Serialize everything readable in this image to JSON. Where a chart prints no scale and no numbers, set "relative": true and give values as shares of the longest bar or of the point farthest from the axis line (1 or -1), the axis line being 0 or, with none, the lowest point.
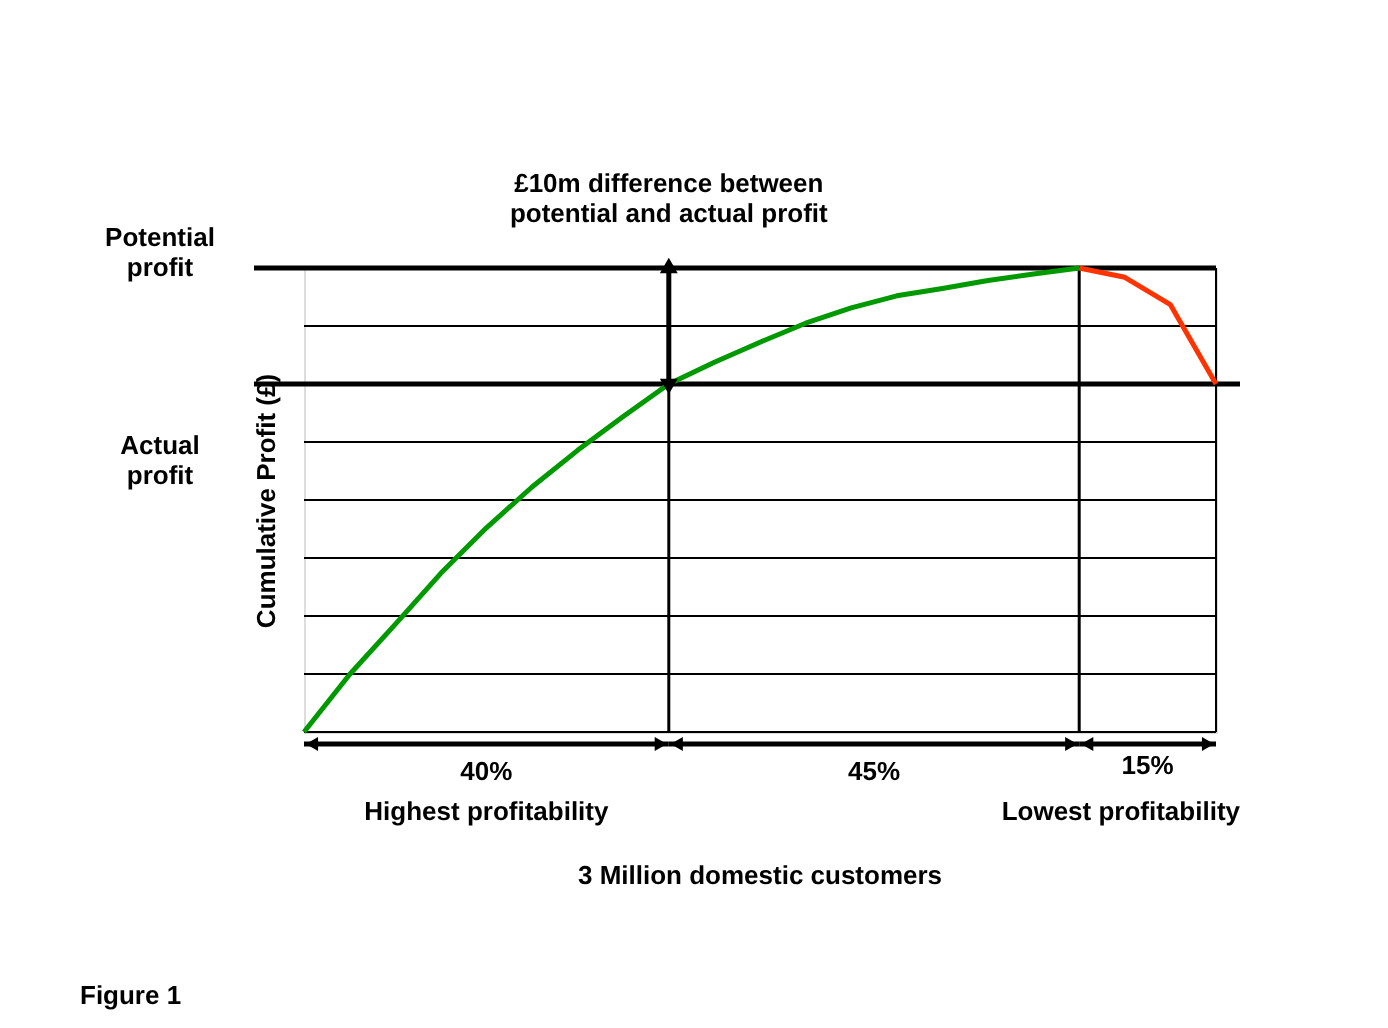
{
  "chart_data": {
    "type": "line",
    "relative": true,
    "ylabel": "Cumulative Profit (£)",
    "grid": "y",
    "categories": [
      null,
      null,
      null,
      null,
      null,
      null,
      null,
      null,
      null,
      null,
      null,
      null,
      null,
      null,
      null,
      null,
      null,
      null,
      null,
      null,
      null
    ],
    "series": [
      {
        "color": "#009900",
        "values": [
          0,
          0.124,
          0.232,
          0.342,
          0.44,
          0.528,
          0.607,
          0.68,
          0.75,
          0.797,
          0.84,
          0.881,
          0.914,
          0.94,
          0.956,
          0.973,
          0.987,
          1,
          null,
          null,
          null
        ]
      },
      {
        "color": "#ff3300",
        "values": [
          null,
          null,
          null,
          null,
          null,
          null,
          null,
          null,
          null,
          null,
          null,
          null,
          null,
          null,
          null,
          null,
          null,
          1,
          0.98,
          0.921,
          0.75
        ]
      }
    ],
    "ref_lines": [
      {
        "axis": "y",
        "value": 1,
        "label": "Potential\nprofit"
      },
      {
        "axis": "y",
        "value": 0.75,
        "label": "Actual\nprofit"
      }
    ],
    "annotations": [
      "£10m difference between\npotential and actual profit",
      "40%",
      "45%",
      "15%",
      "Highest profitability",
      "Lowest profitability",
      "3 Million domestic customers",
      "Figure 1"
    ]
  }
}
